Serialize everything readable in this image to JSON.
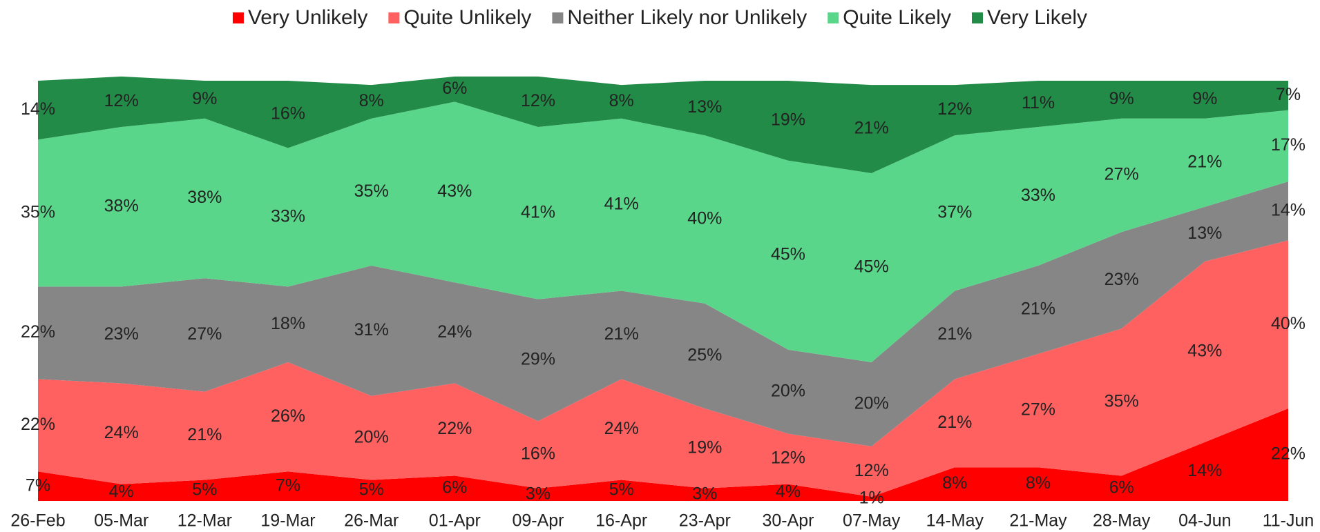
{
  "chart_data": {
    "type": "stacked_area",
    "categories": [
      "26-Feb",
      "05-Mar",
      "12-Mar",
      "19-Mar",
      "26-Mar",
      "01-Apr",
      "09-Apr",
      "16-Apr",
      "23-Apr",
      "30-Apr",
      "07-May",
      "14-May",
      "21-May",
      "28-May",
      "04-Jun",
      "11-Jun"
    ],
    "ylim": [
      0,
      100
    ],
    "legend": "top",
    "series": [
      {
        "name": "Very Unlikely",
        "color": "#ff0000",
        "values": [
          7,
          4,
          5,
          7,
          5,
          6,
          3,
          5,
          3,
          4,
          1,
          8,
          8,
          6,
          14,
          22
        ],
        "value_labels": [
          "7%",
          "4%",
          "5%",
          "7%",
          "5%",
          "6%",
          "3%",
          "5%",
          "3%",
          "4%",
          "1%",
          "8%",
          "8%",
          "6%",
          "14%",
          "22%"
        ]
      },
      {
        "name": "Quite Unlikely",
        "color": "#ff6161",
        "values": [
          22,
          24,
          21,
          26,
          20,
          22,
          16,
          24,
          19,
          12,
          12,
          21,
          27,
          35,
          43,
          40
        ],
        "value_labels": [
          "22%",
          "24%",
          "21%",
          "26%",
          "20%",
          "22%",
          "16%",
          "24%",
          "19%",
          "12%",
          "12%",
          "21%",
          "27%",
          "35%",
          "43%",
          "40%"
        ]
      },
      {
        "name": "Neither Likely nor Unlikely",
        "color": "#868686",
        "values": [
          22,
          23,
          27,
          18,
          31,
          24,
          29,
          21,
          25,
          20,
          20,
          21,
          21,
          23,
          13,
          14
        ],
        "value_labels": [
          "22%",
          "23%",
          "27%",
          "18%",
          "31%",
          "24%",
          "29%",
          "21%",
          "25%",
          "20%",
          "20%",
          "21%",
          "21%",
          "23%",
          "13%",
          "14%"
        ]
      },
      {
        "name": "Quite Likely",
        "color": "#5ad68a",
        "values": [
          35,
          38,
          38,
          33,
          35,
          43,
          41,
          41,
          40,
          45,
          45,
          37,
          33,
          27,
          21,
          17
        ],
        "value_labels": [
          "35%",
          "38%",
          "38%",
          "33%",
          "35%",
          "43%",
          "41%",
          "41%",
          "40%",
          "45%",
          "45%",
          "37%",
          "33%",
          "27%",
          "21%",
          "17%"
        ]
      },
      {
        "name": "Very Likely",
        "color": "#228b47",
        "values": [
          14,
          12,
          9,
          16,
          8,
          6,
          12,
          8,
          13,
          19,
          21,
          12,
          11,
          9,
          9,
          7
        ],
        "value_labels": [
          "14%",
          "12%",
          "9%",
          "16%",
          "8%",
          "6%",
          "12%",
          "8%",
          "13%",
          "19%",
          "21%",
          "12%",
          "11%",
          "9%",
          "9%",
          "7%"
        ]
      }
    ]
  }
}
